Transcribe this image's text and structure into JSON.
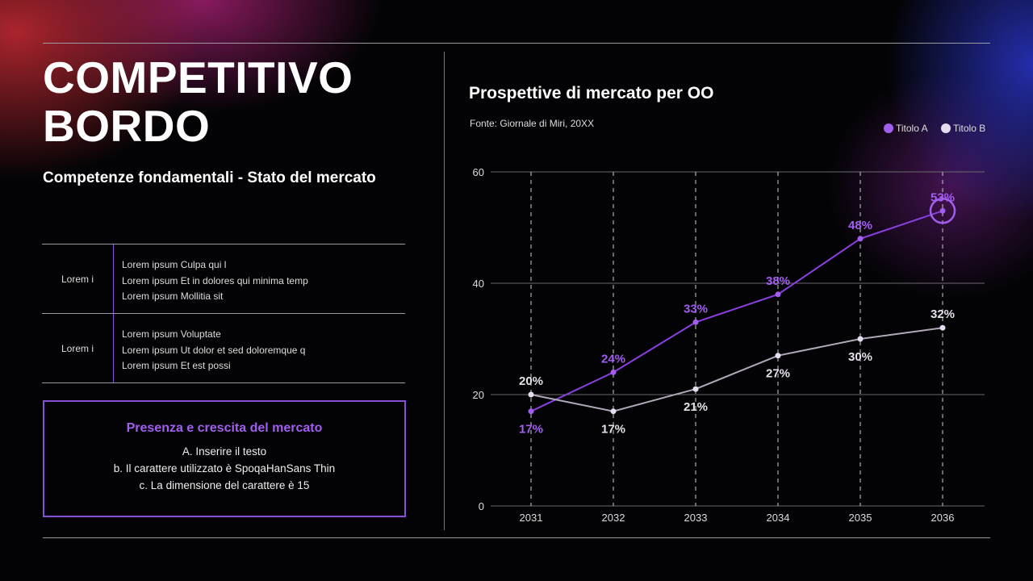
{
  "slide": {
    "title": "COMPETITIVO BORDO",
    "subtitle": "Competenze fondamentali - Stato del mercato"
  },
  "table": [
    {
      "label": "Lorem i",
      "items": [
        "Lorem ipsum Culpa qui l",
        "Lorem ipsum Et in dolores qui minima temp",
        "Lorem ipsum Mollitia sit"
      ]
    },
    {
      "label": "Lorem i",
      "items": [
        "Lorem ipsum Voluptate",
        "Lorem ipsum Ut dolor et sed doloremque q",
        "Lorem ipsum Et est possi"
      ]
    }
  ],
  "box": {
    "title": "Presenza e crescita del mercato",
    "lines": [
      "A. Inserire il testo",
      "b. Il carattere utilizzato è SpoqaHanSans Thin",
      "c. La dimensione del carattere è 15"
    ]
  },
  "colors": {
    "accent": "#a35ef0",
    "seriesA": "#8a3fe0",
    "seriesB": "#b0a8b8"
  },
  "chart_data": {
    "type": "line",
    "title": "Prospettive di mercato per OO",
    "subtitle": "Fonte: Giornale di Miri, 20XX",
    "categories": [
      "2031",
      "2032",
      "2033",
      "2034",
      "2035",
      "2036"
    ],
    "yticks": [
      "0",
      "20",
      "40",
      "60"
    ],
    "ylim": [
      0,
      60
    ],
    "grid": true,
    "legend": "top-right",
    "series": [
      {
        "name": "Titolo A",
        "values": [
          17,
          24,
          33,
          38,
          48,
          53
        ],
        "labels": [
          "17%",
          "24%",
          "33%",
          "38%",
          "48%",
          "53%"
        ],
        "color": "#8a3fe0",
        "labelColor": "#a35ef0"
      },
      {
        "name": "Titolo B",
        "values": [
          20,
          17,
          21,
          27,
          30,
          32
        ],
        "labels": [
          "20%",
          "17%",
          "21%",
          "27%",
          "30%",
          "32%"
        ],
        "color": "#b0a8b8",
        "labelColor": "#e6e0ea"
      }
    ]
  }
}
